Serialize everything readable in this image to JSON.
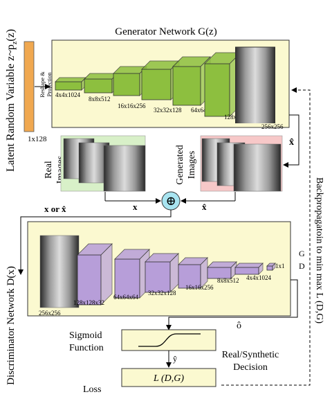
{
  "latent": {
    "label": "Latent Random Variable z~p",
    "sub": "z",
    "close": "(z)",
    "size": "1x128",
    "reshape_label_1": "Reshape &",
    "reshape_label_2": "Projection"
  },
  "generator": {
    "title": "Generator Network G(z)",
    "layers": [
      "4x4x1024",
      "8x8x512",
      "16x16x256",
      "32x32x128",
      "64x64x64",
      "128x128x32",
      "256x256"
    ]
  },
  "real_images": {
    "label_1": "Real",
    "label_2": "Images",
    "x_label": "x"
  },
  "generated_images": {
    "label_1": "Generated",
    "label_2": "Images",
    "x_label": "x̂",
    "side_label": "x̂"
  },
  "combine": {
    "symbol": "⊕",
    "input_label": "x or x̂"
  },
  "discriminator": {
    "title": "Discriminator Network D(x)",
    "layers": [
      "256x256",
      "128x128x32",
      "64x64x64",
      "32x32x128",
      "16x16x256",
      "8x8x512",
      "4x4x1024",
      "1x1"
    ]
  },
  "sigmoid": {
    "label_1": "Sigmoid",
    "label_2": "Function",
    "output": "ô",
    "y_hat": "ŷ"
  },
  "decision": {
    "label_1": "Real/Synthetic",
    "label_2": "Decision"
  },
  "loss": {
    "label": "Loss",
    "formula": "L (D,G)"
  },
  "backprop": {
    "label": "Backpropagatoin to min max L (D,G)",
    "g": "G",
    "d": "D"
  },
  "colors": {
    "panel": "#fbf9d0",
    "gen_layer": "#8dbf3f",
    "disc_layer": "#b79ed9",
    "latent": "#f0a850",
    "real_bg": "#d8f0c8",
    "gen_bg": "#f7c8c8",
    "circle": "#a8e4f0"
  }
}
